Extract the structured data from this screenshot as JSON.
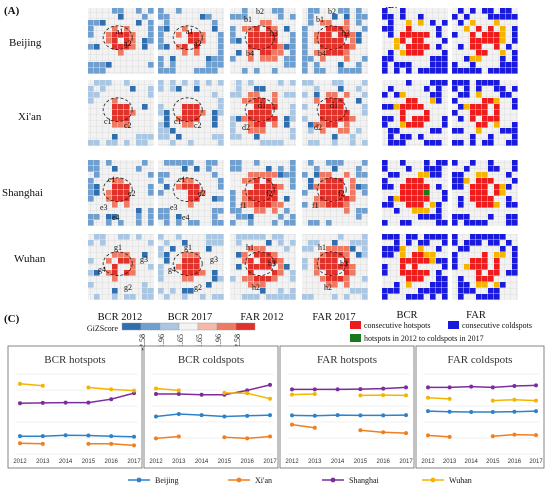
{
  "panels": {
    "a": "(A)",
    "b": "(B)",
    "c": "(C)"
  },
  "cities": [
    "Beijing",
    "Xi'an",
    "Shanghai",
    "Wuhan"
  ],
  "map_columns": [
    "BCR 2012",
    "BCR 2017",
    "FAR 2012",
    "FAR 2017"
  ],
  "map_b_columns": [
    "BCR",
    "FAR"
  ],
  "cluster_labels": {
    "beijing": [
      "a1",
      "a2",
      "a1",
      "a2",
      "b1",
      "b2",
      "b3",
      "b4",
      "b1",
      "b2",
      "b3",
      "b4"
    ],
    "xian": [
      "c1",
      "c2",
      "c1",
      "c2",
      "d1",
      "d2",
      "d1",
      "d2"
    ],
    "shanghai": [
      "e1",
      "e2",
      "e3",
      "e4",
      "e1",
      "e2",
      "e3",
      "e4",
      "f1",
      "f2",
      "f1",
      "f2"
    ],
    "wuhan": [
      "g1",
      "g2",
      "g3",
      "g4",
      "g1",
      "g2",
      "g3",
      "g4",
      "h1",
      "h2",
      "h3",
      "h1",
      "h2",
      "h3"
    ]
  },
  "gi_legend": {
    "title": "GiZScore",
    "ticks": [
      "-2.58",
      "-1.96",
      "-1.65",
      "1.65",
      "1.96",
      "2.58"
    ],
    "colors": [
      "#2f6fb0",
      "#6e9fce",
      "#a9c6e2",
      "#f4f4f4",
      "#f6b8a8",
      "#ee7a63",
      "#e0322b"
    ]
  },
  "b_legend": [
    {
      "label": "consecutive hotspots",
      "color": "#ee1c1c"
    },
    {
      "label": "consecutive coldspots",
      "color": "#1a1adc"
    },
    {
      "label": "hotspots in 2012 to coldspots in 2017",
      "color": "#1a7a1a"
    }
  ],
  "series_colors": {
    "Beijing": "#2f82c8",
    "Xi'an": "#f07f1d",
    "Shanghai": "#7b2d9c",
    "Wuhan": "#f5b400"
  },
  "chart_data": [
    {
      "type": "line",
      "title": "BCR hotspots",
      "x": [
        "2012",
        "2013",
        "2014",
        "2015",
        "2016",
        "2017"
      ],
      "ylim": [
        140,
        400
      ],
      "grid": true,
      "series": [
        {
          "name": "Beijing",
          "values": [
            198,
            198,
            201,
            200,
            198,
            196
          ]
        },
        {
          "name": "Xi'an",
          "values": [
            175,
            173,
            null,
            173,
            173,
            168
          ]
        },
        {
          "name": "Shanghai",
          "values": [
            305,
            306,
            307,
            307,
            318,
            338
          ]
        },
        {
          "name": "Wuhan",
          "values": [
            368,
            362,
            null,
            356,
            350,
            346
          ]
        }
      ]
    },
    {
      "type": "line",
      "title": "BCR coldspots",
      "x": [
        "2012",
        "2013",
        "2014",
        "2015",
        "2016",
        "2017"
      ],
      "ylim": [
        140,
        360
      ],
      "grid": true,
      "series": [
        {
          "name": "Beijing",
          "values": [
            243,
            250,
            247,
            243,
            245,
            247
          ]
        },
        {
          "name": "Xi'an",
          "values": [
            183,
            188,
            null,
            186,
            183,
            188
          ]
        },
        {
          "name": "Shanghai",
          "values": [
            305,
            305,
            303,
            303,
            315,
            330
          ]
        },
        {
          "name": "Wuhan",
          "values": [
            320,
            315,
            null,
            308,
            307,
            292
          ]
        }
      ]
    },
    {
      "type": "line",
      "title": "FAR hotspots",
      "x": [
        "2012",
        "2013",
        "2014",
        "2015",
        "2016",
        "2017"
      ],
      "ylim": [
        140,
        420
      ],
      "grid": true,
      "series": [
        {
          "name": "Beijing",
          "values": [
            275,
            274,
            276,
            275,
            275,
            276
          ]
        },
        {
          "name": "Xi'an",
          "values": [
            243,
            232,
            null,
            223,
            216,
            213
          ]
        },
        {
          "name": "Shanghai",
          "values": [
            366,
            366,
            366,
            367,
            369,
            373
          ]
        },
        {
          "name": "Wuhan",
          "values": [
            348,
            350,
            null,
            345,
            346,
            345
          ]
        }
      ]
    },
    {
      "type": "line",
      "title": "FAR coldspots",
      "x": [
        "2012",
        "2013",
        "2014",
        "2015",
        "2016",
        "2017"
      ],
      "ylim": [
        140,
        420
      ],
      "grid": true,
      "series": [
        {
          "name": "Beijing",
          "values": [
            290,
            288,
            287,
            287,
            288,
            290
          ]
        },
        {
          "name": "Xi'an",
          "values": [
            205,
            200,
            null,
            202,
            208,
            206
          ]
        },
        {
          "name": "Shanghai",
          "values": [
            373,
            373,
            376,
            373,
            378,
            380
          ]
        },
        {
          "name": "Wuhan",
          "values": [
            337,
            333,
            null,
            327,
            330,
            327
          ]
        }
      ]
    }
  ]
}
